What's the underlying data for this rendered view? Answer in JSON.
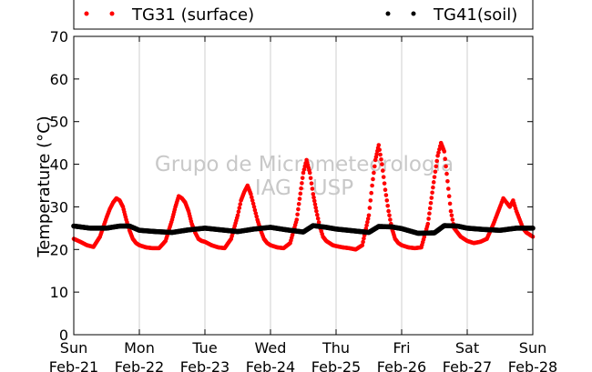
{
  "chart_data": {
    "type": "scatter",
    "title": "",
    "xlabel": "",
    "ylabel": "Temperature (°C)",
    "ylim": [
      0,
      70
    ],
    "yticks": [
      0,
      10,
      20,
      30,
      40,
      50,
      60,
      70
    ],
    "xlim": [
      0,
      7
    ],
    "x_unit": "days since Sun Feb-21 00:00",
    "xticks": [
      {
        "day": "Sun",
        "date": "Feb-21"
      },
      {
        "day": "Mon",
        "date": "Feb-22"
      },
      {
        "day": "Tue",
        "date": "Feb-23"
      },
      {
        "day": "Wed",
        "date": "Feb-24"
      },
      {
        "day": "Thu",
        "date": "Feb-25"
      },
      {
        "day": "Fri",
        "date": "Feb-26"
      },
      {
        "day": "Sat",
        "date": "Feb-27"
      },
      {
        "day": "Sun",
        "date": "Feb-28"
      }
    ],
    "grid": "vertical",
    "legend_position": "top",
    "watermark": [
      "Grupo de Micrometeorologia",
      "IAG - USP"
    ],
    "series": [
      {
        "name": "TG31 (surface)",
        "color": "#ff0000",
        "x": [
          0.0,
          0.1,
          0.2,
          0.3,
          0.4,
          0.5,
          0.55,
          0.6,
          0.65,
          0.7,
          0.75,
          0.8,
          0.85,
          0.9,
          0.95,
          1.0,
          1.1,
          1.2,
          1.3,
          1.4,
          1.5,
          1.55,
          1.6,
          1.65,
          1.7,
          1.75,
          1.8,
          1.85,
          1.9,
          1.95,
          2.0,
          2.1,
          2.2,
          2.3,
          2.4,
          2.5,
          2.55,
          2.6,
          2.65,
          2.7,
          2.75,
          2.8,
          2.85,
          2.9,
          2.95,
          3.0,
          3.1,
          3.2,
          3.3,
          3.4,
          3.5,
          3.55,
          3.6,
          3.65,
          3.7,
          3.75,
          3.8,
          3.85,
          3.9,
          3.95,
          4.0,
          4.1,
          4.2,
          4.3,
          4.4,
          4.5,
          4.55,
          4.6,
          4.65,
          4.7,
          4.75,
          4.8,
          4.85,
          4.9,
          4.95,
          5.0,
          5.1,
          5.2,
          5.3,
          5.4,
          5.5,
          5.55,
          5.6,
          5.65,
          5.7,
          5.75,
          5.8,
          5.85,
          5.9,
          5.95,
          6.0,
          6.1,
          6.2,
          6.3,
          6.4,
          6.5,
          6.55,
          6.6,
          6.65,
          6.7,
          6.75,
          6.8,
          6.85,
          6.9,
          6.95,
          7.0
        ],
        "values": [
          22.5,
          21.8,
          21.0,
          20.6,
          23.0,
          27.5,
          29.5,
          31.0,
          32.0,
          31.5,
          30.0,
          27.0,
          24.5,
          22.5,
          21.5,
          21.0,
          20.5,
          20.3,
          20.3,
          22.0,
          27.0,
          30.0,
          32.5,
          32.0,
          31.0,
          29.0,
          26.0,
          24.0,
          22.5,
          22.0,
          21.8,
          21.0,
          20.5,
          20.3,
          22.5,
          28.0,
          31.5,
          33.5,
          35.0,
          33.0,
          30.0,
          27.0,
          24.5,
          22.5,
          21.5,
          21.0,
          20.5,
          20.3,
          21.5,
          27.0,
          38.0,
          41.0,
          38.0,
          33.0,
          29.0,
          25.5,
          23.0,
          22.0,
          21.5,
          21.0,
          20.8,
          20.5,
          20.3,
          20.0,
          21.0,
          28.0,
          35.0,
          41.0,
          44.5,
          40.0,
          34.0,
          29.0,
          25.0,
          22.5,
          21.5,
          21.0,
          20.5,
          20.3,
          20.5,
          26.0,
          37.0,
          42.0,
          45.0,
          43.0,
          36.0,
          29.0,
          25.0,
          24.0,
          23.0,
          22.5,
          22.0,
          21.5,
          21.8,
          22.5,
          26.0,
          30.0,
          32.0,
          31.0,
          30.0,
          31.5,
          29.0,
          27.0,
          25.0,
          24.0,
          23.5,
          23.0
        ]
      },
      {
        "name": "TG41(soil)",
        "color": "#000000",
        "x": [
          0.0,
          0.25,
          0.5,
          0.7,
          0.85,
          1.0,
          1.25,
          1.5,
          1.75,
          2.0,
          2.25,
          2.5,
          2.75,
          3.0,
          3.25,
          3.5,
          3.65,
          3.85,
          4.0,
          4.25,
          4.5,
          4.65,
          4.85,
          5.0,
          5.25,
          5.5,
          5.65,
          5.85,
          6.0,
          6.25,
          6.5,
          6.75,
          7.0
        ],
        "values": [
          25.5,
          25.0,
          25.0,
          25.5,
          25.5,
          24.5,
          24.2,
          24.0,
          24.6,
          25.0,
          24.6,
          24.2,
          24.8,
          25.2,
          24.6,
          24.1,
          25.6,
          25.2,
          24.8,
          24.4,
          24.0,
          25.4,
          25.3,
          24.9,
          23.8,
          23.9,
          25.6,
          25.5,
          25.0,
          24.7,
          24.5,
          25.0,
          25.0
        ]
      }
    ]
  }
}
